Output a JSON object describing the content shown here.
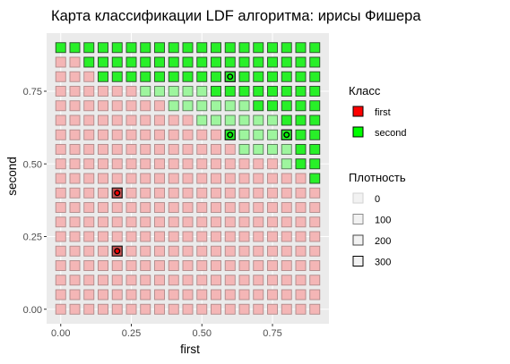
{
  "chart_data": {
    "type": "heatmap",
    "title": "Карта классификации LDF алгоритма: ирисы Фишера",
    "xlabel": "first",
    "ylabel": "second",
    "xlim": [
      -0.05,
      0.95
    ],
    "ylim": [
      -0.05,
      0.95
    ],
    "x_ticks": [
      0,
      0.25,
      0.5,
      0.75
    ],
    "x_tick_labels": [
      "0.00",
      "0.25",
      "0.50",
      "0.75"
    ],
    "y_ticks": [
      0,
      0.25,
      0.5,
      0.75
    ],
    "y_tick_labels": [
      "0.00",
      "0.25",
      "0.50",
      "0.75"
    ],
    "grid": true,
    "legend_position": "right",
    "grid_step": 0.05,
    "x_values": [
      0,
      0.05,
      0.1,
      0.15,
      0.2,
      0.25,
      0.3,
      0.35,
      0.4,
      0.45,
      0.5,
      0.55,
      0.6,
      0.65,
      0.7,
      0.75,
      0.8,
      0.85,
      0.9
    ],
    "y_values": [
      0,
      0.05,
      0.1,
      0.15,
      0.2,
      0.25,
      0.3,
      0.35,
      0.4,
      0.45,
      0.5,
      0.55,
      0.6,
      0.65,
      0.7,
      0.75,
      0.8,
      0.85,
      0.9
    ],
    "decision_boundary": {
      "description": "cell is classed 'second' when first > boundary(second)",
      "points": [
        [
          0,
          0.875
        ],
        [
          0.1,
          0.825
        ],
        [
          0.2,
          0.775
        ],
        [
          0.3,
          0.725
        ],
        [
          0.4,
          0.675
        ],
        [
          0.5,
          0.625
        ],
        [
          0.6,
          0.575
        ],
        [
          0.7,
          0.525
        ],
        [
          0.8,
          0.475
        ],
        [
          0.9,
          0.425
        ]
      ]
    },
    "classes": [
      {
        "name": "first",
        "color": "#ff0000"
      },
      {
        "name": "second",
        "color": "#00ff00"
      }
    ],
    "density_legend": {
      "title": "Плотность",
      "values": [
        0,
        100,
        200,
        300
      ],
      "labels": [
        "0",
        "100",
        "200",
        "300"
      ]
    },
    "class_legend_title": "Класс",
    "training_points": [
      {
        "x": 0.2,
        "y": 0.4,
        "class": "first"
      },
      {
        "x": 0.2,
        "y": 0.2,
        "class": "first"
      },
      {
        "x": 0.6,
        "y": 0.8,
        "class": "second"
      },
      {
        "x": 0.6,
        "y": 0.6,
        "class": "second"
      },
      {
        "x": 0.8,
        "y": 0.6,
        "class": "second"
      }
    ],
    "colors": {
      "panel": "#ebebeb",
      "grid_major": "#ffffff",
      "first_light": "#f4b6b6",
      "second_light": "#9ef59e",
      "second_strong": "#28f028"
    }
  }
}
